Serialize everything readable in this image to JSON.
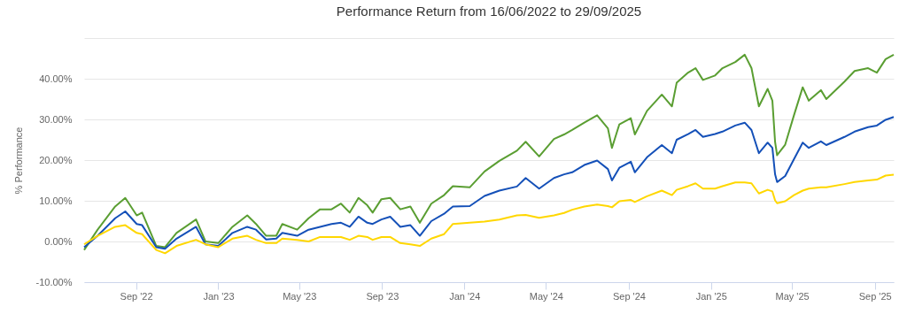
{
  "chart_data": {
    "type": "line",
    "title": "Performance Return from 16/06/2022 to 29/09/2025",
    "ylabel": "% Performance",
    "x": [
      "2022-06-16",
      "2022-07-06",
      "2022-08-01",
      "2022-08-16",
      "2022-09-02",
      "2022-09-10",
      "2022-10-01",
      "2022-10-14",
      "2022-10-31",
      "2022-11-29",
      "2022-12-13",
      "2023-01-01",
      "2023-01-22",
      "2023-02-13",
      "2023-02-26",
      "2023-03-13",
      "2023-03-28",
      "2023-04-06",
      "2023-04-28",
      "2023-05-15",
      "2023-06-01",
      "2023-06-18",
      "2023-07-02",
      "2023-07-15",
      "2023-07-28",
      "2023-08-10",
      "2023-08-18",
      "2023-08-31",
      "2023-09-13",
      "2023-09-28",
      "2023-10-13",
      "2023-10-27",
      "2023-11-13",
      "2023-12-02",
      "2023-12-15",
      "2024-01-09",
      "2024-01-31",
      "2024-02-22",
      "2024-03-19",
      "2024-04-01",
      "2024-04-21",
      "2024-05-13",
      "2024-05-28",
      "2024-06-09",
      "2024-06-27",
      "2024-07-16",
      "2024-08-01",
      "2024-08-07",
      "2024-08-18",
      "2024-09-04",
      "2024-09-10",
      "2024-09-28",
      "2024-10-20",
      "2024-11-04",
      "2024-11-11",
      "2024-11-28",
      "2024-12-09",
      "2024-12-20",
      "2025-01-07",
      "2025-01-18",
      "2025-02-06",
      "2025-02-20",
      "2025-03-02",
      "2025-03-13",
      "2025-03-26",
      "2025-04-02",
      "2025-04-06",
      "2025-04-09",
      "2025-04-21",
      "2025-05-04",
      "2025-05-17",
      "2025-05-26",
      "2025-06-13",
      "2025-06-21",
      "2025-07-18",
      "2025-08-02",
      "2025-08-22",
      "2025-09-04",
      "2025-09-17",
      "2025-09-29"
    ],
    "series": [
      {
        "color": "#5a9e32",
        "values": [
          -2.1,
          2.9,
          8.6,
          10.7,
          6.4,
          7.1,
          -1.1,
          -1.4,
          2.1,
          5.4,
          0,
          -0.4,
          3.6,
          6.4,
          4.3,
          1.4,
          1.4,
          4.3,
          2.9,
          5.7,
          7.9,
          7.9,
          9.3,
          7.1,
          10.7,
          8.9,
          7.1,
          10.4,
          10.7,
          7.9,
          8.6,
          4.6,
          9.3,
          11.4,
          13.6,
          13.3,
          17.2,
          19.8,
          22.3,
          24.5,
          20.9,
          25.2,
          26.3,
          27.4,
          29.2,
          31,
          27.8,
          23,
          28.8,
          30.3,
          26.3,
          32.1,
          36.1,
          33.2,
          39,
          41.5,
          42.6,
          39.7,
          40.8,
          42.6,
          44.1,
          45.9,
          42.6,
          33.2,
          37.5,
          34.6,
          24.5,
          21.2,
          23.8,
          31,
          37.9,
          34.6,
          37.2,
          35,
          39.3,
          41.9,
          42.6,
          41.5,
          44.8,
          45.9
        ]
      },
      {
        "color": "#1450b8",
        "values": [
          -1.4,
          1.4,
          5.7,
          7.4,
          4.3,
          4.0,
          -1.4,
          -1.8,
          0.7,
          3.6,
          -0.7,
          -1.1,
          2.1,
          3.6,
          2.9,
          0.5,
          0.7,
          2.1,
          1.4,
          2.9,
          3.6,
          4.3,
          4.6,
          3.6,
          6.1,
          4.6,
          4.3,
          5.4,
          6.1,
          3.6,
          4.0,
          1.4,
          5.0,
          6.8,
          8.6,
          8.7,
          11.2,
          12.5,
          13.5,
          15.6,
          13.0,
          15.6,
          16.5,
          17.0,
          18.8,
          19.9,
          17.8,
          15.0,
          18.1,
          19.6,
          17.0,
          20.7,
          23.7,
          21.7,
          25.0,
          26.4,
          27.4,
          25.7,
          26.4,
          27.0,
          28.5,
          29.2,
          27.4,
          21.7,
          24.3,
          23.0,
          16.5,
          14.6,
          16.1,
          20.2,
          24.3,
          23.0,
          24.6,
          23.7,
          25.7,
          27.0,
          28.1,
          28.5,
          29.9,
          30.6
        ]
      },
      {
        "color": "#ffd700",
        "values": [
          -0.7,
          1.4,
          3.6,
          4.0,
          2.1,
          1.8,
          -2.1,
          -2.9,
          -1.1,
          0.4,
          -0.7,
          -1.4,
          0.7,
          1.4,
          0.4,
          -0.4,
          -0.4,
          0.7,
          0.4,
          0.0,
          1.1,
          1.1,
          1.1,
          0.4,
          1.4,
          1.1,
          0.4,
          1.1,
          1.1,
          -0.4,
          -0.7,
          -1.1,
          0.7,
          1.8,
          4.3,
          4.6,
          4.9,
          5.4,
          6.4,
          6.5,
          5.8,
          6.4,
          7.0,
          7.8,
          8.6,
          9.1,
          8.7,
          8.4,
          9.9,
          10.2,
          9.7,
          11.1,
          12.5,
          11.4,
          12.7,
          13.6,
          14.3,
          13.0,
          13.0,
          13.6,
          14.5,
          14.5,
          14.3,
          11.8,
          12.7,
          12.3,
          10.1,
          9.4,
          9.9,
          11.4,
          12.5,
          13.0,
          13.3,
          13.3,
          14.1,
          14.6,
          15.0,
          15.2,
          16.2,
          16.4
        ]
      }
    ],
    "xlim": [
      "2022-06-16",
      "2025-09-29"
    ],
    "xticks": [
      {
        "value": "2022-09-01",
        "label": "Sep '22"
      },
      {
        "value": "2023-01-01",
        "label": "Jan '23"
      },
      {
        "value": "2023-05-01",
        "label": "May '23"
      },
      {
        "value": "2023-09-01",
        "label": "Sep '23"
      },
      {
        "value": "2024-01-01",
        "label": "Jan '24"
      },
      {
        "value": "2024-05-01",
        "label": "May '24"
      },
      {
        "value": "2024-09-01",
        "label": "Sep '24"
      },
      {
        "value": "2025-01-01",
        "label": "Jan '25"
      },
      {
        "value": "2025-05-01",
        "label": "May '25"
      },
      {
        "value": "2025-09-01",
        "label": "Sep '25"
      }
    ],
    "ylim": [
      -10,
      50
    ],
    "yticks": [
      {
        "value": -10,
        "label": "-10.00%"
      },
      {
        "value": 0,
        "label": "0.00%"
      },
      {
        "value": 10,
        "label": "10.00%"
      },
      {
        "value": 20,
        "label": "20.00%"
      },
      {
        "value": 30,
        "label": "30.00%"
      },
      {
        "value": 40,
        "label": "40.00%"
      },
      {
        "value": 50,
        "label": null
      }
    ],
    "grid": "y",
    "legend": false,
    "line_style": "solid"
  }
}
